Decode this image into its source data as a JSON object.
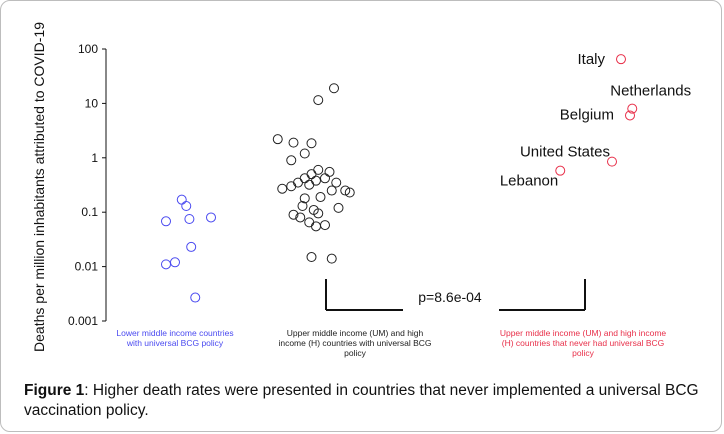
{
  "chart_data": {
    "type": "scatter",
    "ylabel": "Deaths per million inhabitants attributed to COVID-19",
    "yscale": "log",
    "ylim": [
      0.001,
      100
    ],
    "yticks": [
      "100",
      "10",
      "1",
      "0.1",
      "0.01",
      "0.001"
    ],
    "ytick_values": [
      100,
      10,
      1,
      0.1,
      0.01,
      0.001
    ],
    "groups": [
      {
        "name": "Lower middle income countries with universal BCG policy",
        "label_lines": [
          "Lower middle income countries",
          "with universal BCG policy"
        ],
        "color": "#4a4af0",
        "points": [
          {
            "x": 0.15,
            "y": 0.17
          },
          {
            "x": 0.25,
            "y": 0.13
          },
          {
            "x": -0.2,
            "y": 0.068
          },
          {
            "x": 0.32,
            "y": 0.075
          },
          {
            "x": 0.8,
            "y": 0.08
          },
          {
            "x": 0.36,
            "y": 0.023
          },
          {
            "x": -0.2,
            "y": 0.011
          },
          {
            "x": 0.0,
            "y": 0.012
          },
          {
            "x": 0.45,
            "y": 0.0027
          }
        ]
      },
      {
        "name": "Upper middle income (UM) and high income (H) countries with universal BCG policy",
        "label_lines": [
          "Upper middle income (UM)  and high",
          "income (H) countries with universal BCG",
          "policy"
        ],
        "color": "#222222",
        "points": [
          {
            "x": 0.2,
            "y": 19
          },
          {
            "x": -0.15,
            "y": 11.5
          },
          {
            "x": -1.05,
            "y": 2.2
          },
          {
            "x": -0.7,
            "y": 1.9
          },
          {
            "x": -0.3,
            "y": 1.85
          },
          {
            "x": -0.45,
            "y": 1.2
          },
          {
            "x": -0.75,
            "y": 0.9
          },
          {
            "x": -0.15,
            "y": 0.6
          },
          {
            "x": 0.1,
            "y": 0.55
          },
          {
            "x": -0.45,
            "y": 0.42
          },
          {
            "x": -0.3,
            "y": 0.5
          },
          {
            "x": -0.2,
            "y": 0.38
          },
          {
            "x": 0.0,
            "y": 0.42
          },
          {
            "x": -0.6,
            "y": 0.35
          },
          {
            "x": -0.75,
            "y": 0.3
          },
          {
            "x": -0.35,
            "y": 0.32
          },
          {
            "x": 0.25,
            "y": 0.35
          },
          {
            "x": -0.95,
            "y": 0.27
          },
          {
            "x": 0.15,
            "y": 0.25
          },
          {
            "x": 0.45,
            "y": 0.25
          },
          {
            "x": 0.55,
            "y": 0.23
          },
          {
            "x": -0.1,
            "y": 0.19
          },
          {
            "x": -0.45,
            "y": 0.18
          },
          {
            "x": -0.5,
            "y": 0.13
          },
          {
            "x": -0.25,
            "y": 0.11
          },
          {
            "x": 0.3,
            "y": 0.12
          },
          {
            "x": -0.7,
            "y": 0.09
          },
          {
            "x": -0.55,
            "y": 0.08
          },
          {
            "x": -0.15,
            "y": 0.095
          },
          {
            "x": -0.35,
            "y": 0.065
          },
          {
            "x": -0.2,
            "y": 0.055
          },
          {
            "x": 0.0,
            "y": 0.058
          },
          {
            "x": -0.3,
            "y": 0.015
          },
          {
            "x": 0.15,
            "y": 0.014
          }
        ]
      },
      {
        "name": "Upper middle income (UM) and high income (H) countries that never had universal BCG policy",
        "label_lines": [
          "Upper middle income (UM)  and high income",
          "(H) countries that never had universal BCG",
          "policy"
        ],
        "color": "#e8304a",
        "points": [
          {
            "x": 0.8,
            "y": 65,
            "label": "Italy"
          },
          {
            "x": 1.05,
            "y": 8,
            "label": "Netherlands"
          },
          {
            "x": 1.0,
            "y": 6,
            "label": "Belgium"
          },
          {
            "x": 0.6,
            "y": 0.85,
            "label": "United States"
          },
          {
            "x": -0.55,
            "y": 0.58,
            "label": "Lebanon"
          }
        ]
      }
    ],
    "annotation": {
      "text": "p=8.6e-04",
      "from_group": 1,
      "to_group": 2
    }
  },
  "caption": {
    "prefix": "Figure 1",
    "text": ":  Higher death rates were presented in countries that never implemented a universal BCG vaccination policy."
  }
}
